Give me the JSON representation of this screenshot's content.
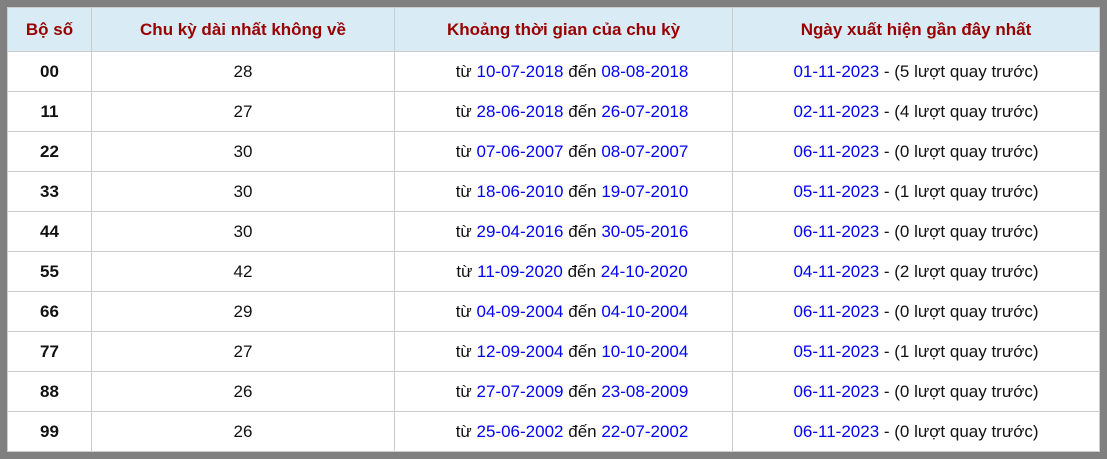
{
  "colors": {
    "frame": "#808080",
    "header_bg": "#d9ecf5",
    "header_text": "#990000",
    "grid_line": "#cccccc",
    "date_link": "#0000ff",
    "body_text": "#111111"
  },
  "table": {
    "headers": {
      "pair": "Bộ số",
      "cycle": "Chu kỳ dài nhất không về",
      "period": "Khoảng thời gian của chu kỳ",
      "recent": "Ngày xuất hiện gần đây nhất"
    },
    "labels": {
      "from": "từ",
      "to": "đến"
    },
    "rows": [
      {
        "pair": "00",
        "cycle": "28",
        "start": "10-07-2018",
        "end": "08-08-2018",
        "recent": "01-11-2023",
        "suffix": "- (5 lượt quay trước)"
      },
      {
        "pair": "11",
        "cycle": "27",
        "start": "28-06-2018",
        "end": "26-07-2018",
        "recent": "02-11-2023",
        "suffix": "- (4 lượt quay trước)"
      },
      {
        "pair": "22",
        "cycle": "30",
        "start": "07-06-2007",
        "end": "08-07-2007",
        "recent": "06-11-2023",
        "suffix": "- (0 lượt quay trước)"
      },
      {
        "pair": "33",
        "cycle": "30",
        "start": "18-06-2010",
        "end": "19-07-2010",
        "recent": "05-11-2023",
        "suffix": "- (1 lượt quay trước)"
      },
      {
        "pair": "44",
        "cycle": "30",
        "start": "29-04-2016",
        "end": "30-05-2016",
        "recent": "06-11-2023",
        "suffix": "- (0 lượt quay trước)"
      },
      {
        "pair": "55",
        "cycle": "42",
        "start": "11-09-2020",
        "end": "24-10-2020",
        "recent": "04-11-2023",
        "suffix": "- (2 lượt quay trước)"
      },
      {
        "pair": "66",
        "cycle": "29",
        "start": "04-09-2004",
        "end": "04-10-2004",
        "recent": "06-11-2023",
        "suffix": "- (0 lượt quay trước)"
      },
      {
        "pair": "77",
        "cycle": "27",
        "start": "12-09-2004",
        "end": "10-10-2004",
        "recent": "05-11-2023",
        "suffix": "- (1 lượt quay trước)"
      },
      {
        "pair": "88",
        "cycle": "26",
        "start": "27-07-2009",
        "end": "23-08-2009",
        "recent": "06-11-2023",
        "suffix": "- (0 lượt quay trước)"
      },
      {
        "pair": "99",
        "cycle": "26",
        "start": "25-06-2002",
        "end": "22-07-2002",
        "recent": "06-11-2023",
        "suffix": "- (0 lượt quay trước)"
      }
    ]
  }
}
